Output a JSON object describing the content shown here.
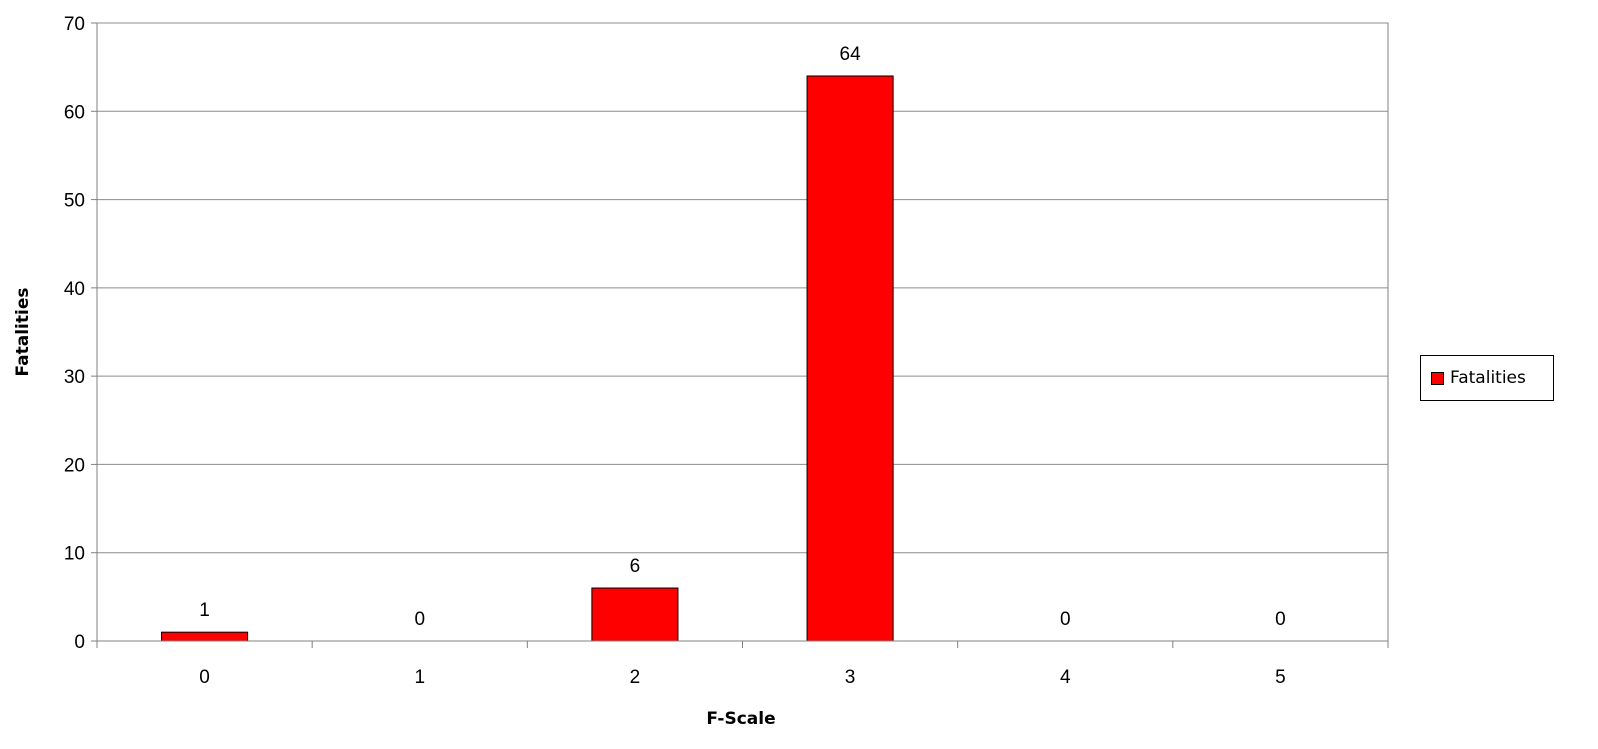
{
  "chart_data": {
    "type": "bar",
    "categories": [
      "0",
      "1",
      "2",
      "3",
      "4",
      "5"
    ],
    "series": [
      {
        "name": "Fatalities",
        "values": [
          1,
          0,
          6,
          64,
          0,
          0
        ],
        "color": "#ff0000"
      }
    ],
    "data_labels": [
      "1",
      "0",
      "6",
      "64",
      "0",
      "0"
    ],
    "xlabel": "F-Scale",
    "ylabel": "Fatalities",
    "ylim": [
      0,
      70
    ],
    "yticks": [
      0,
      10,
      20,
      30,
      40,
      50,
      60,
      70
    ],
    "grid": true,
    "legend": "right",
    "colors": {
      "bar": "#ff0000",
      "bar_border": "#000000",
      "grid": "#8c8c8c",
      "axis": "#808080"
    }
  }
}
